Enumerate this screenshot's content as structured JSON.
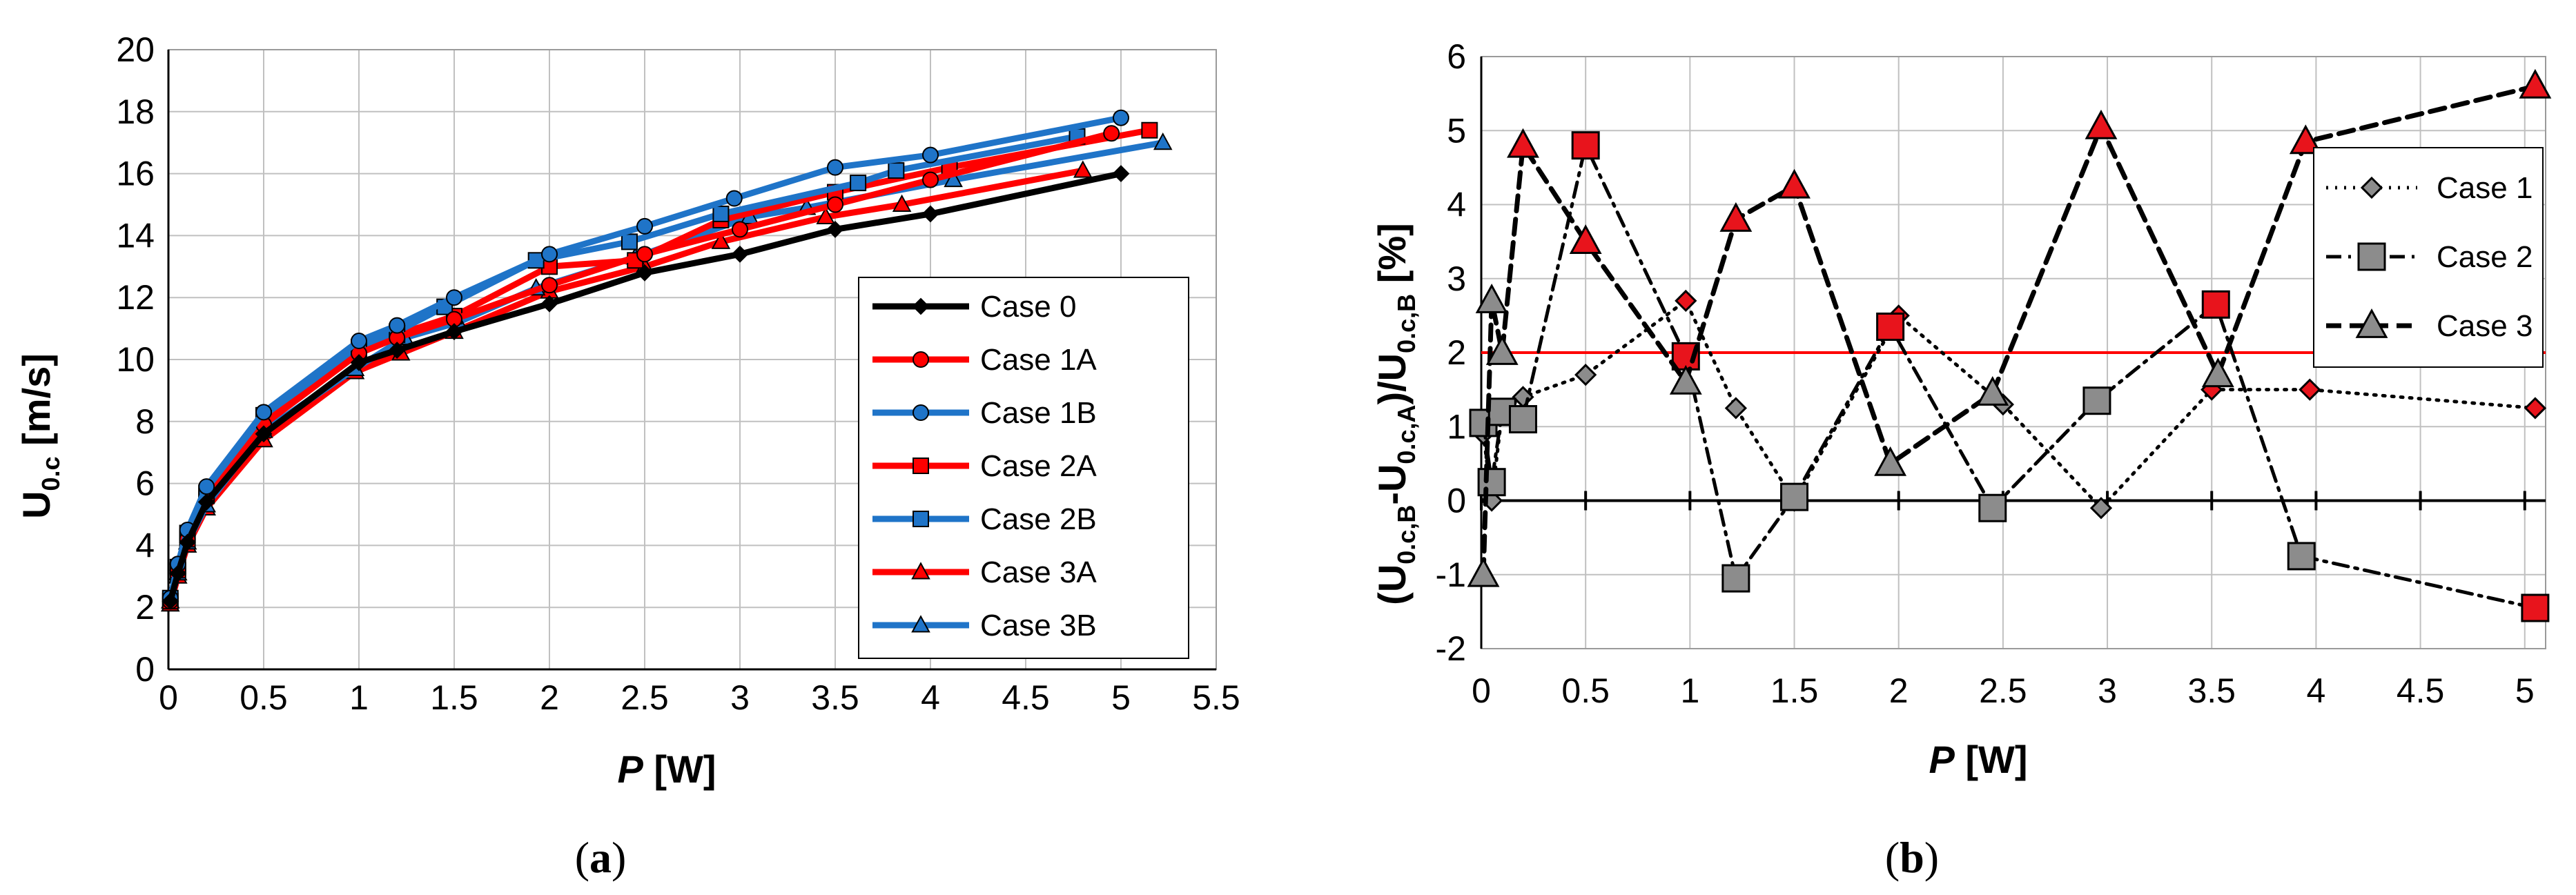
{
  "chart_data": [
    {
      "type": "line",
      "panel": "a",
      "title": "",
      "xlabel": "P [W]",
      "xlabel_main": "P",
      "xlabel_unit": " [W]",
      "ylabel": "U0.c [m/s]",
      "ylabel_main": "U",
      "ylabel_sub": "0.c",
      "ylabel_unit": " [m/s]",
      "xlim": [
        0,
        5.5
      ],
      "ylim": [
        0,
        20
      ],
      "xticks": [
        0,
        0.5,
        1,
        1.5,
        2,
        2.5,
        3,
        3.5,
        4,
        4.5,
        5,
        5.5
      ],
      "yticks": [
        0,
        2,
        4,
        6,
        8,
        10,
        12,
        14,
        16,
        18,
        20
      ],
      "grid": true,
      "legend_position": "right",
      "series": [
        {
          "name": "Case 0",
          "color": "#000000",
          "marker": "diamond",
          "x": [
            0.01,
            0.05,
            0.1,
            0.2,
            0.5,
            1.0,
            1.2,
            1.5,
            2.0,
            2.5,
            3.0,
            3.5,
            4.0,
            5.0
          ],
          "y": [
            2.2,
            3.1,
            4.1,
            5.4,
            7.6,
            9.9,
            10.3,
            10.9,
            11.8,
            12.8,
            13.4,
            14.2,
            14.7,
            16.0
          ]
        },
        {
          "name": "Case 1A",
          "color": "#ff0000",
          "marker": "circle",
          "x": [
            0.01,
            0.05,
            0.1,
            0.2,
            0.5,
            1.0,
            1.2,
            1.5,
            2.0,
            2.5,
            3.0,
            3.5,
            4.0,
            4.95
          ],
          "y": [
            2.2,
            3.2,
            4.2,
            5.5,
            7.9,
            10.2,
            10.7,
            11.3,
            12.4,
            13.4,
            14.2,
            15.0,
            15.8,
            17.3
          ]
        },
        {
          "name": "Case 1B",
          "color": "#1f74c8",
          "marker": "circle",
          "x": [
            0.01,
            0.05,
            0.1,
            0.2,
            0.5,
            1.0,
            1.2,
            1.5,
            2.0,
            2.5,
            2.97,
            3.5,
            4.0,
            5.0
          ],
          "y": [
            2.3,
            3.4,
            4.5,
            5.9,
            8.3,
            10.6,
            11.1,
            12.0,
            13.4,
            14.3,
            15.2,
            16.2,
            16.6,
            17.8
          ]
        },
        {
          "name": "Case 2A",
          "color": "#ff0000",
          "marker": "square",
          "x": [
            0.01,
            0.05,
            0.1,
            0.2,
            0.5,
            1.0,
            1.2,
            1.5,
            2.0,
            2.45,
            2.9,
            3.5,
            4.1,
            5.15
          ],
          "y": [
            2.2,
            3.2,
            4.2,
            5.6,
            8.0,
            10.2,
            10.8,
            11.4,
            13.0,
            13.2,
            14.5,
            15.4,
            16.2,
            17.4
          ]
        },
        {
          "name": "Case 2B",
          "color": "#1f74c8",
          "marker": "square",
          "x": [
            0.01,
            0.05,
            0.1,
            0.2,
            0.5,
            1.0,
            1.2,
            1.45,
            1.93,
            2.42,
            2.9,
            3.62,
            3.82,
            4.77
          ],
          "y": [
            2.3,
            3.3,
            4.4,
            5.7,
            8.2,
            10.4,
            10.9,
            11.7,
            13.2,
            13.8,
            14.7,
            15.7,
            16.1,
            17.2
          ]
        },
        {
          "name": "Case 3A",
          "color": "#ff0000",
          "marker": "triangle",
          "x": [
            0.01,
            0.05,
            0.1,
            0.2,
            0.5,
            0.98,
            1.22,
            1.5,
            2.0,
            2.5,
            2.9,
            3.45,
            3.85,
            4.8
          ],
          "y": [
            2.1,
            3.0,
            4.0,
            5.2,
            7.4,
            9.6,
            10.2,
            10.9,
            12.2,
            13.0,
            13.8,
            14.6,
            15.0,
            16.1
          ]
        },
        {
          "name": "Case 3B",
          "color": "#1f74c8",
          "marker": "triangle",
          "x": [
            0.01,
            0.05,
            0.1,
            0.2,
            0.5,
            0.98,
            1.24,
            1.52,
            1.93,
            2.45,
            3.05,
            3.35,
            4.12,
            5.22
          ],
          "y": [
            2.2,
            3.1,
            4.1,
            5.3,
            7.7,
            9.7,
            10.7,
            11.2,
            12.3,
            13.3,
            14.6,
            14.9,
            15.8,
            17.0
          ]
        }
      ]
    },
    {
      "type": "line",
      "panel": "b",
      "title": "",
      "xlabel": "P [W]",
      "xlabel_main": "P",
      "xlabel_unit": " [W]",
      "ylabel": "(U0.c,B-U0.c,A)/U0.c,B [%]",
      "ylabel_parts": [
        "(U",
        "0.c,B",
        "-U",
        "0.c,A",
        ")/U",
        "0.c,B",
        " [%]"
      ],
      "xlim": [
        0,
        5.1
      ],
      "ylim": [
        -2,
        6
      ],
      "xticks": [
        0,
        0.5,
        1,
        1.5,
        2,
        2.5,
        3,
        3.5,
        4,
        4.5,
        5
      ],
      "yticks": [
        -2,
        -1,
        0,
        1,
        2,
        3,
        4,
        5,
        6
      ],
      "grid": true,
      "legend_position": "right",
      "reference_lines": [
        {
          "y": 0,
          "color": "#000000"
        },
        {
          "y": 2,
          "color": "#ff0000"
        }
      ],
      "series": [
        {
          "name": "Case 1",
          "color": "#000000",
          "marker": "diamond",
          "dash": "dot",
          "x": [
            0.01,
            0.05,
            0.1,
            0.2,
            0.5,
            0.98,
            1.22,
            1.5,
            2.0,
            2.5,
            2.97,
            3.5,
            3.97,
            5.05
          ],
          "y": [
            0.9,
            0.0,
            1.2,
            1.4,
            1.7,
            2.7,
            1.25,
            0.0,
            2.5,
            1.3,
            -0.1,
            1.5,
            1.5,
            1.25
          ],
          "highlight": [
            false,
            false,
            false,
            false,
            false,
            true,
            false,
            false,
            true,
            false,
            false,
            true,
            true,
            true
          ]
        },
        {
          "name": "Case 2",
          "color": "#000000",
          "marker": "square",
          "dash": "dashdot",
          "x": [
            0.01,
            0.05,
            0.1,
            0.2,
            0.5,
            0.98,
            1.22,
            1.5,
            1.96,
            2.45,
            2.95,
            3.52,
            3.93,
            5.05
          ],
          "y": [
            1.05,
            0.25,
            1.2,
            1.1,
            4.8,
            1.95,
            -1.05,
            0.05,
            2.35,
            -0.1,
            1.35,
            2.65,
            -0.75,
            -1.45
          ],
          "highlight": [
            false,
            false,
            false,
            false,
            true,
            true,
            false,
            false,
            true,
            false,
            false,
            true,
            false,
            true
          ]
        },
        {
          "name": "Case 3",
          "color": "#000000",
          "marker": "triangle",
          "dash": "dash",
          "x": [
            0.01,
            0.05,
            0.1,
            0.2,
            0.5,
            0.98,
            1.22,
            1.5,
            1.96,
            2.45,
            2.97,
            3.53,
            3.95,
            5.05
          ],
          "y": [
            -1.0,
            2.7,
            2.0,
            4.8,
            3.5,
            1.6,
            3.8,
            4.25,
            0.5,
            1.45,
            5.05,
            1.7,
            4.85,
            5.6
          ],
          "highlight": [
            false,
            false,
            false,
            true,
            true,
            false,
            true,
            true,
            false,
            false,
            true,
            false,
            true,
            true
          ]
        }
      ]
    }
  ],
  "panel_labels": [
    "(a)",
    "(b)"
  ],
  "panel_letters": [
    "a",
    "b"
  ],
  "colors": {
    "highlight_fill": "#e8141c",
    "gray_fill": "#8c8c8c",
    "red_line": "#ff0000",
    "blue_line": "#1f74c8"
  }
}
